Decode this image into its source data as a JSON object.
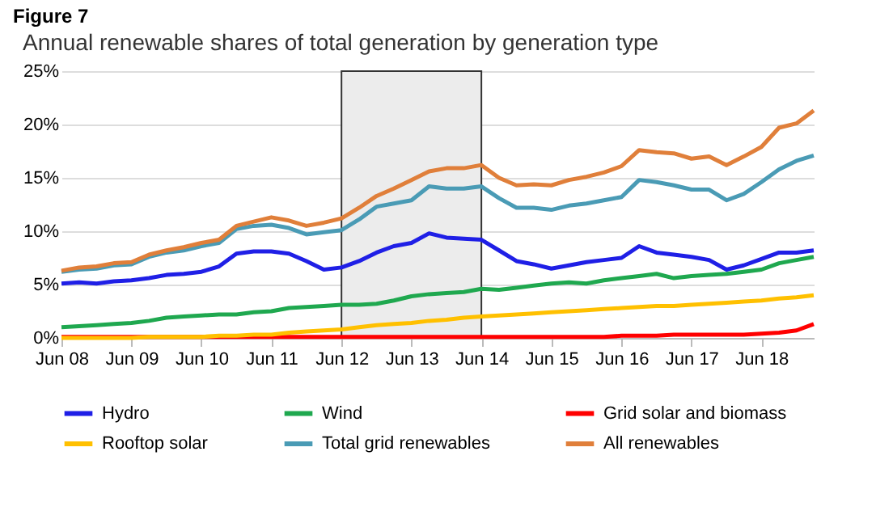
{
  "chart_data": {
    "type": "line",
    "title": "Annual renewable shares of total generation by generation type",
    "annotations": [
      "Figure 7"
    ],
    "x": [
      "2008-06",
      "2008-09",
      "2008-12",
      "2009-03",
      "2009-06",
      "2009-09",
      "2009-12",
      "2010-03",
      "2010-06",
      "2010-09",
      "2010-12",
      "2011-03",
      "2011-06",
      "2011-09",
      "2011-12",
      "2012-03",
      "2012-06",
      "2012-09",
      "2012-12",
      "2013-03",
      "2013-06",
      "2013-09",
      "2013-12",
      "2014-03",
      "2014-06",
      "2014-09",
      "2014-12",
      "2015-03",
      "2015-06",
      "2015-09",
      "2015-12",
      "2016-03",
      "2016-06",
      "2016-09",
      "2016-12",
      "2017-03",
      "2017-06",
      "2017-09",
      "2017-12",
      "2018-03",
      "2018-06",
      "2018-09",
      "2018-12",
      "2019-03"
    ],
    "series": [
      {
        "name": "Hydro",
        "color": "#1f1fe6",
        "values": [
          5.1,
          5.2,
          5.1,
          5.3,
          5.4,
          5.6,
          5.9,
          6.0,
          6.2,
          6.7,
          7.9,
          8.1,
          8.1,
          7.9,
          7.2,
          6.4,
          6.6,
          7.2,
          8.0,
          8.6,
          8.9,
          9.8,
          9.4,
          9.3,
          9.2,
          8.2,
          7.2,
          6.9,
          6.5,
          6.8,
          7.1,
          7.3,
          7.5,
          8.6,
          8.0,
          7.8,
          7.6,
          7.3,
          6.4,
          6.8,
          7.4,
          8.0,
          8.0,
          8.2
        ]
      },
      {
        "name": "Wind",
        "color": "#1fa84f",
        "values": [
          1.0,
          1.1,
          1.2,
          1.3,
          1.4,
          1.6,
          1.9,
          2.0,
          2.1,
          2.2,
          2.2,
          2.4,
          2.5,
          2.8,
          2.9,
          3.0,
          3.1,
          3.1,
          3.2,
          3.5,
          3.9,
          4.1,
          4.2,
          4.3,
          4.6,
          4.5,
          4.7,
          4.9,
          5.1,
          5.2,
          5.1,
          5.4,
          5.6,
          5.8,
          6.0,
          5.6,
          5.8,
          5.9,
          6.0,
          6.2,
          6.4,
          7.0,
          7.3,
          7.6
        ]
      },
      {
        "name": "Grid solar and biomass",
        "color": "#ff0000",
        "values": [
          0.1,
          0.1,
          0.1,
          0.1,
          0.1,
          0.1,
          0.1,
          0.1,
          0.1,
          0.1,
          0.1,
          0.1,
          0.1,
          0.1,
          0.1,
          0.1,
          0.1,
          0.1,
          0.1,
          0.1,
          0.1,
          0.1,
          0.1,
          0.1,
          0.1,
          0.1,
          0.1,
          0.1,
          0.1,
          0.1,
          0.1,
          0.1,
          0.2,
          0.2,
          0.2,
          0.3,
          0.3,
          0.3,
          0.3,
          0.3,
          0.4,
          0.5,
          0.7,
          1.3
        ]
      },
      {
        "name": "Rooftop solar",
        "color": "#ffc000",
        "values": [
          0.0,
          0.0,
          0.0,
          0.0,
          0.0,
          0.1,
          0.1,
          0.1,
          0.1,
          0.2,
          0.2,
          0.3,
          0.3,
          0.5,
          0.6,
          0.7,
          0.8,
          1.0,
          1.2,
          1.3,
          1.4,
          1.6,
          1.7,
          1.9,
          2.0,
          2.1,
          2.2,
          2.3,
          2.4,
          2.5,
          2.6,
          2.7,
          2.8,
          2.9,
          3.0,
          3.0,
          3.1,
          3.2,
          3.3,
          3.4,
          3.5,
          3.7,
          3.8,
          4.0
        ]
      },
      {
        "name": "Total grid renewables",
        "color": "#4a9bb5",
        "values": [
          6.2,
          6.4,
          6.5,
          6.8,
          6.9,
          7.6,
          8.0,
          8.2,
          8.6,
          8.9,
          10.2,
          10.5,
          10.6,
          10.3,
          9.7,
          9.9,
          10.1,
          11.1,
          12.3,
          12.6,
          12.9,
          14.2,
          14.0,
          14.0,
          14.2,
          13.1,
          12.2,
          12.2,
          12.0,
          12.4,
          12.6,
          12.9,
          13.2,
          14.8,
          14.6,
          14.3,
          13.9,
          13.9,
          12.9,
          13.5,
          14.6,
          15.8,
          16.6,
          17.1
        ]
      },
      {
        "name": "All renewables",
        "color": "#e07f3a",
        "values": [
          6.3,
          6.6,
          6.7,
          7.0,
          7.1,
          7.8,
          8.2,
          8.5,
          8.9,
          9.2,
          10.5,
          10.9,
          11.3,
          11.0,
          10.5,
          10.8,
          11.2,
          12.2,
          13.3,
          14.0,
          14.8,
          15.6,
          15.9,
          15.9,
          16.2,
          15.0,
          14.3,
          14.4,
          14.3,
          14.8,
          15.1,
          15.5,
          16.1,
          17.6,
          17.4,
          17.3,
          16.8,
          17.0,
          16.2,
          17.0,
          17.9,
          19.7,
          20.1,
          21.3
        ]
      }
    ],
    "xlim": [
      "2008-06",
      "2019-03"
    ],
    "xticks": [
      {
        "value": "2008-06",
        "label": "Jun 08"
      },
      {
        "value": "2009-06",
        "label": "Jun 09"
      },
      {
        "value": "2010-06",
        "label": "Jun 10"
      },
      {
        "value": "2011-06",
        "label": "Jun 11"
      },
      {
        "value": "2012-06",
        "label": "Jun 12"
      },
      {
        "value": "2013-06",
        "label": "Jun 13"
      },
      {
        "value": "2014-06",
        "label": "Jun 14"
      },
      {
        "value": "2015-06",
        "label": "Jun 15"
      },
      {
        "value": "2016-06",
        "label": "Jun 16"
      },
      {
        "value": "2017-06",
        "label": "Jun 17"
      },
      {
        "value": "2018-06",
        "label": "Jun 18"
      }
    ],
    "ylim": [
      0,
      25
    ],
    "yticks": [
      {
        "value": 0,
        "label": "0%"
      },
      {
        "value": 5,
        "label": "5%"
      },
      {
        "value": 10,
        "label": "10%"
      },
      {
        "value": 15,
        "label": "15%"
      },
      {
        "value": 20,
        "label": "20%"
      },
      {
        "value": 25,
        "label": "25%"
      }
    ],
    "bands": [
      {
        "axis": "x",
        "from": "2012-06",
        "to": "2014-06",
        "color": "#ececec"
      }
    ],
    "grid": "y",
    "legend": "bottom",
    "marker": "none",
    "line_style": "solid"
  }
}
